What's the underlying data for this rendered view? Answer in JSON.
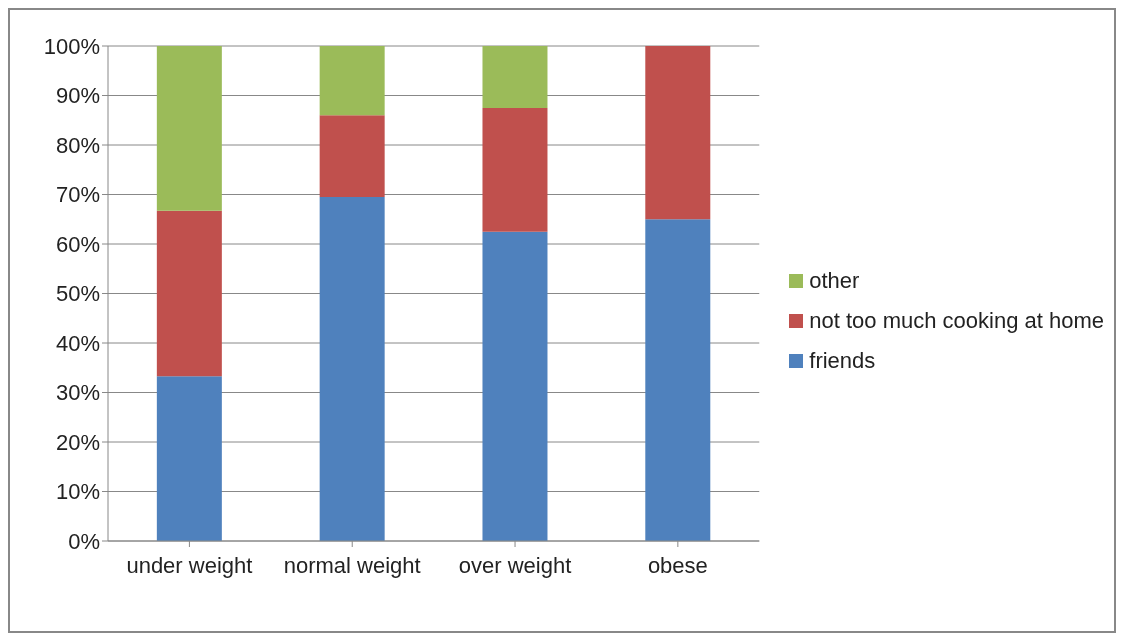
{
  "chart_data": {
    "type": "bar",
    "stacked": true,
    "categories": [
      "under weight",
      "normal weight",
      "over weight",
      "obese"
    ],
    "series": [
      {
        "name": "friends",
        "color": "#4f81bd",
        "values": [
          33.3,
          69.5,
          62.5,
          65
        ]
      },
      {
        "name": "not too much cooking at home",
        "color": "#c0504d",
        "values": [
          33.4,
          16.5,
          25,
          35
        ]
      },
      {
        "name": "other",
        "color": "#9bbb59",
        "values": [
          33.3,
          14,
          12.5,
          0
        ]
      }
    ],
    "ylim": [
      0,
      100
    ],
    "yticks": [
      {
        "value": 0,
        "label": "0%"
      },
      {
        "value": 10,
        "label": "10%"
      },
      {
        "value": 20,
        "label": "20%"
      },
      {
        "value": 30,
        "label": "30%"
      },
      {
        "value": 40,
        "label": "40%"
      },
      {
        "value": 50,
        "label": "50%"
      },
      {
        "value": 60,
        "label": "60%"
      },
      {
        "value": 70,
        "label": "70%"
      },
      {
        "value": 80,
        "label": "80%"
      },
      {
        "value": 90,
        "label": "90%"
      },
      {
        "value": 100,
        "label": "100%"
      }
    ],
    "grid": "y",
    "legend": "right"
  }
}
